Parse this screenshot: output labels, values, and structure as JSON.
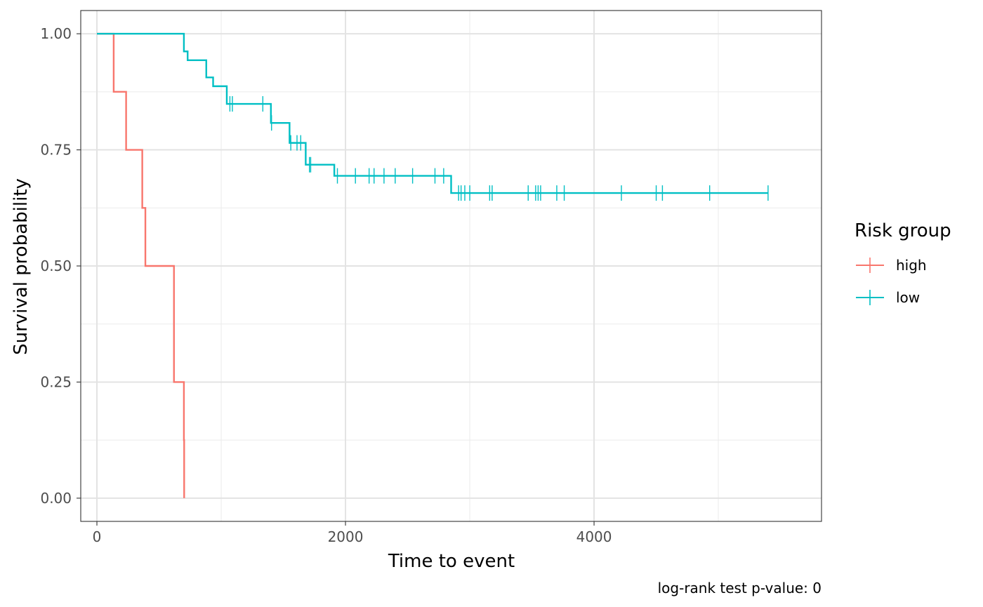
{
  "chart_data": {
    "type": "line",
    "step": true,
    "xlabel": "Time to event",
    "ylabel": "Survival probability",
    "caption": "log-rank test p-value: 0",
    "xlim": [
      -130,
      5830
    ],
    "ylim": [
      -0.05,
      1.05
    ],
    "x_ticks": [
      0,
      2000,
      4000
    ],
    "x_tick_labels": [
      "0",
      "2000",
      "4000"
    ],
    "y_ticks": [
      0,
      0.25,
      0.5,
      0.75,
      1
    ],
    "y_tick_labels": [
      "0.00",
      "0.25",
      "0.50",
      "0.75",
      "1.00"
    ],
    "grid": true,
    "legend": {
      "title": "Risk group",
      "position": "right"
    },
    "series": [
      {
        "name": "high",
        "color": "#F8766D",
        "points": [
          [
            0,
            1.0
          ],
          [
            135,
            0.875
          ],
          [
            235,
            0.75
          ],
          [
            365,
            0.625
          ],
          [
            390,
            0.5
          ],
          [
            620,
            0.25
          ],
          [
            700,
            0.125
          ],
          [
            702,
            0.0
          ]
        ],
        "censored": []
      },
      {
        "name": "low",
        "color": "#00BFC4",
        "points": [
          [
            0,
            1.0
          ],
          [
            700,
            0.962
          ],
          [
            730,
            0.943
          ],
          [
            880,
            0.906
          ],
          [
            935,
            0.887
          ],
          [
            1045,
            0.849
          ],
          [
            1400,
            0.808
          ],
          [
            1550,
            0.765
          ],
          [
            1680,
            0.718
          ],
          [
            1910,
            0.694
          ],
          [
            2850,
            0.657
          ],
          [
            5400,
            0.657
          ]
        ],
        "censored": [
          [
            1070,
            0.849
          ],
          [
            1090,
            0.849
          ],
          [
            1335,
            0.849
          ],
          [
            1405,
            0.808
          ],
          [
            1560,
            0.765
          ],
          [
            1610,
            0.765
          ],
          [
            1640,
            0.765
          ],
          [
            1710,
            0.718
          ],
          [
            1720,
            0.718
          ],
          [
            1935,
            0.694
          ],
          [
            2080,
            0.694
          ],
          [
            2190,
            0.694
          ],
          [
            2230,
            0.694
          ],
          [
            2310,
            0.694
          ],
          [
            2400,
            0.694
          ],
          [
            2540,
            0.694
          ],
          [
            2720,
            0.694
          ],
          [
            2790,
            0.694
          ],
          [
            2910,
            0.657
          ],
          [
            2930,
            0.657
          ],
          [
            2960,
            0.657
          ],
          [
            3000,
            0.657
          ],
          [
            3160,
            0.657
          ],
          [
            3180,
            0.657
          ],
          [
            3470,
            0.657
          ],
          [
            3530,
            0.657
          ],
          [
            3550,
            0.657
          ],
          [
            3570,
            0.657
          ],
          [
            3700,
            0.657
          ],
          [
            3760,
            0.657
          ],
          [
            4220,
            0.657
          ],
          [
            4500,
            0.657
          ],
          [
            4550,
            0.657
          ],
          [
            4930,
            0.657
          ],
          [
            5400,
            0.657
          ]
        ]
      }
    ]
  }
}
